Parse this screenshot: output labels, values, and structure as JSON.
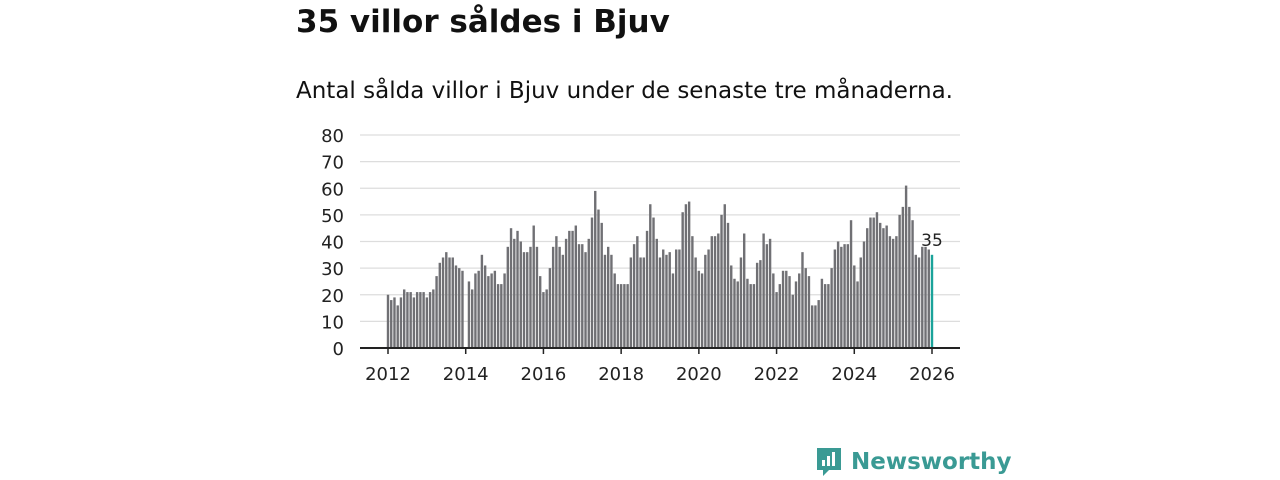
{
  "chart_data": {
    "type": "bar",
    "title": "35 villor såldes i Bjuv",
    "subtitle": "Antal sålda villor i Bjuv under de senaste tre månaderna.",
    "xlabel": "",
    "ylabel": "",
    "ylim": [
      0,
      80
    ],
    "yticks": [
      0,
      10,
      20,
      30,
      40,
      50,
      60,
      70,
      80
    ],
    "xticks": [
      "2012",
      "2014",
      "2016",
      "2018",
      "2020",
      "2022",
      "2024",
      "2026"
    ],
    "start_year": 2012,
    "frequency": "monthly",
    "values": [
      20,
      18,
      19,
      16,
      19,
      22,
      21,
      21,
      19,
      21,
      21,
      21,
      19,
      21,
      22,
      27,
      32,
      34,
      36,
      34,
      34,
      31,
      30,
      29,
      0,
      25,
      22,
      28,
      29,
      35,
      31,
      27,
      28,
      29,
      24,
      24,
      28,
      38,
      45,
      41,
      44,
      40,
      36,
      36,
      38,
      46,
      38,
      27,
      21,
      22,
      30,
      38,
      42,
      38,
      35,
      41,
      44,
      44,
      46,
      39,
      39,
      36,
      41,
      49,
      59,
      52,
      47,
      35,
      38,
      35,
      28,
      24,
      24,
      24,
      24,
      34,
      39,
      42,
      34,
      34,
      44,
      54,
      49,
      41,
      34,
      37,
      35,
      36,
      28,
      37,
      37,
      51,
      54,
      55,
      42,
      34,
      29,
      28,
      35,
      37,
      42,
      42,
      43,
      50,
      54,
      47,
      31,
      26,
      25,
      34,
      43,
      26,
      24,
      24,
      32,
      33,
      43,
      39,
      41,
      28,
      21,
      24,
      29,
      29,
      27,
      20,
      25,
      28,
      36,
      30,
      27,
      16,
      16,
      18,
      26,
      24,
      24,
      30,
      37,
      40,
      38,
      39,
      39,
      48,
      31,
      25,
      34,
      40,
      45,
      49,
      49,
      51,
      47,
      45,
      46,
      42,
      41,
      42,
      50,
      53,
      61,
      53,
      48,
      35,
      34,
      38,
      38,
      37,
      35
    ],
    "annotation": "35",
    "grid": true,
    "bar_color": "#707074",
    "highlight_color": "#1aa39a"
  },
  "logo": {
    "text": "Newsworthy",
    "color": "#3a9a94"
  }
}
